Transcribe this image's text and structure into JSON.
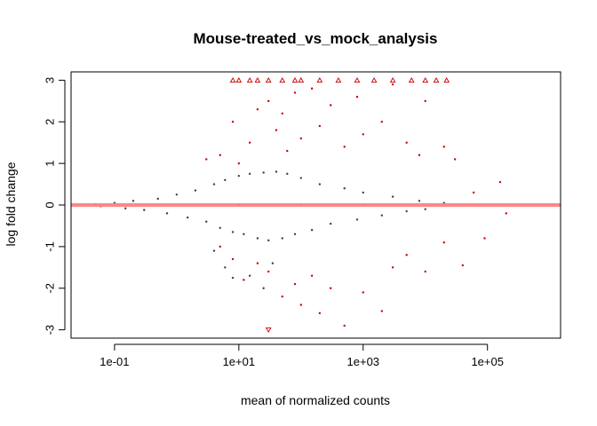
{
  "chart_data": {
    "type": "scatter",
    "title": "Mouse-treated_vs_mock_analysis",
    "xlabel": "mean of normalized counts",
    "ylabel": "log fold change",
    "x_scale": "log10",
    "xlim": [
      0.02,
      1500000
    ],
    "ylim": [
      -3.2,
      3.2
    ],
    "x_ticks": [
      0.1,
      10,
      1000,
      100000
    ],
    "x_tick_labels": [
      "1e-01",
      "1e+01",
      "1e+03",
      "1e+05"
    ],
    "y_ticks": [
      -3,
      -2,
      -1,
      0,
      1,
      2,
      3
    ],
    "y_tick_labels": [
      "-3",
      "-2",
      "-1",
      "0",
      "1",
      "2",
      "3"
    ],
    "reference_line": {
      "y": 0,
      "color": "#ff7f7f"
    },
    "grid": false,
    "legend": "none",
    "colors": {
      "nonsignificant": "#404040",
      "significant": "#cc0000",
      "reference_line": "#ff7f7f"
    },
    "series": [
      {
        "values": [
          [
            0.05,
            0.02
          ],
          [
            0.06,
            -0.03
          ],
          [
            0.1,
            0.05
          ],
          [
            0.15,
            -0.08
          ],
          [
            0.2,
            0.1
          ],
          [
            0.3,
            -0.12
          ],
          [
            0.5,
            0.15
          ],
          [
            0.7,
            -0.2
          ],
          [
            1,
            0.25
          ],
          [
            1.5,
            -0.3
          ],
          [
            2,
            0.35
          ],
          [
            3,
            -0.4
          ],
          [
            4,
            0.5
          ],
          [
            5,
            -0.55
          ],
          [
            6,
            0.6
          ],
          [
            8,
            -0.65
          ],
          [
            10,
            0.7
          ],
          [
            12,
            -0.7
          ],
          [
            15,
            0.75
          ],
          [
            20,
            -0.8
          ],
          [
            25,
            0.78
          ],
          [
            30,
            -0.85
          ],
          [
            40,
            0.8
          ],
          [
            50,
            -0.8
          ],
          [
            60,
            0.75
          ],
          [
            80,
            -0.7
          ],
          [
            100,
            0.65
          ],
          [
            150,
            -0.6
          ],
          [
            200,
            0.5
          ],
          [
            300,
            -0.45
          ],
          [
            500,
            0.4
          ],
          [
            800,
            -0.35
          ],
          [
            1000,
            0.3
          ],
          [
            2000,
            -0.25
          ],
          [
            3000,
            0.2
          ],
          [
            5000,
            -0.15
          ],
          [
            8000,
            0.1
          ],
          [
            10000,
            -0.1
          ],
          [
            20000,
            0.05
          ],
          [
            4,
            -1.1
          ],
          [
            6,
            -1.5
          ],
          [
            8,
            -1.75
          ],
          [
            15,
            -1.7
          ],
          [
            25,
            -2.0
          ],
          [
            35,
            -1.4
          ],
          [
            10,
            0.0
          ],
          [
            100,
            0.0
          ],
          [
            1000,
            0.0
          ]
        ]
      },
      {
        "values": [
          [
            3,
            1.1
          ],
          [
            5,
            1.2
          ],
          [
            8,
            2.0
          ],
          [
            10,
            1.0
          ],
          [
            15,
            1.5
          ],
          [
            20,
            2.3
          ],
          [
            30,
            2.5
          ],
          [
            40,
            1.8
          ],
          [
            50,
            2.2
          ],
          [
            60,
            1.3
          ],
          [
            80,
            2.7
          ],
          [
            100,
            1.6
          ],
          [
            150,
            2.8
          ],
          [
            200,
            1.9
          ],
          [
            300,
            2.4
          ],
          [
            500,
            1.4
          ],
          [
            800,
            2.6
          ],
          [
            1000,
            1.7
          ],
          [
            2000,
            2.0
          ],
          [
            3000,
            2.9
          ],
          [
            5000,
            1.5
          ],
          [
            8000,
            1.2
          ],
          [
            10000,
            2.5
          ],
          [
            20000,
            1.4
          ],
          [
            30000,
            1.1
          ],
          [
            60000,
            0.3
          ],
          [
            160000,
            0.55
          ],
          [
            5,
            -1.0
          ],
          [
            8,
            -1.3
          ],
          [
            12,
            -1.8
          ],
          [
            20,
            -1.4
          ],
          [
            30,
            -1.6
          ],
          [
            50,
            -2.2
          ],
          [
            80,
            -1.9
          ],
          [
            100,
            -2.4
          ],
          [
            150,
            -1.7
          ],
          [
            200,
            -2.6
          ],
          [
            300,
            -2.0
          ],
          [
            500,
            -2.9
          ],
          [
            1000,
            -2.1
          ],
          [
            2000,
            -2.55
          ],
          [
            3000,
            -1.5
          ],
          [
            5000,
            -1.2
          ],
          [
            10000,
            -1.6
          ],
          [
            20000,
            -0.9
          ],
          [
            40000,
            -1.45
          ],
          [
            90000,
            -0.8
          ],
          [
            200000,
            -0.2
          ],
          [
            8,
            3.0
          ],
          [
            10,
            3.0
          ],
          [
            15,
            3.0
          ],
          [
            20,
            3.0
          ],
          [
            30,
            3.0
          ],
          [
            50,
            3.0
          ],
          [
            80,
            3.0
          ],
          [
            100,
            3.0
          ],
          [
            200,
            3.0
          ],
          [
            400,
            3.0
          ],
          [
            800,
            3.0
          ],
          [
            1500,
            3.0
          ],
          [
            3000,
            3.0
          ],
          [
            6000,
            3.0
          ],
          [
            10000,
            3.0
          ],
          [
            15000,
            3.0
          ],
          [
            22000,
            3.0
          ],
          [
            30,
            -3.0
          ]
        ]
      }
    ]
  }
}
